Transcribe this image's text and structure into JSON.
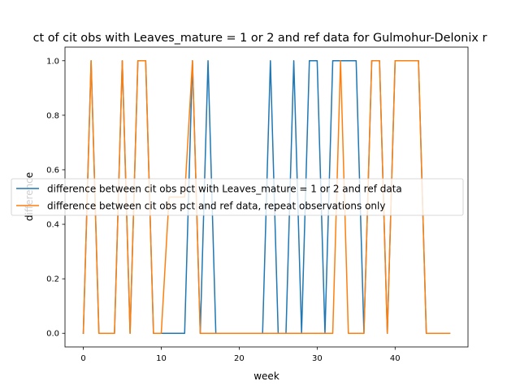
{
  "chart_data": {
    "type": "line",
    "title": "ct of cit obs with Leaves_mature = 1 or 2 and ref data for Gulmohur-Delonix r",
    "xlabel": "week",
    "ylabel": "difference",
    "xlim": [
      -2.35,
      49.35
    ],
    "ylim": [
      -0.05,
      1.05
    ],
    "xticks": [
      0,
      10,
      20,
      30,
      40
    ],
    "yticks": [
      0.0,
      0.2,
      0.4,
      0.6,
      0.8,
      1.0
    ],
    "xtick_labels": [
      "0",
      "10",
      "20",
      "30",
      "40"
    ],
    "ytick_labels": [
      "0.0",
      "0.2",
      "0.4",
      "0.6",
      "0.8",
      "1.0"
    ],
    "legend_position": "center-left",
    "grid": false,
    "x": [
      0,
      1,
      2,
      3,
      4,
      5,
      6,
      7,
      8,
      9,
      10,
      11,
      12,
      13,
      14,
      15,
      16,
      17,
      18,
      19,
      20,
      21,
      22,
      23,
      24,
      25,
      26,
      27,
      28,
      29,
      30,
      31,
      32,
      33,
      34,
      35,
      36,
      37,
      38,
      39,
      40,
      41,
      42,
      43,
      44,
      45,
      46,
      47
    ],
    "series": [
      {
        "name": "difference between cit obs pct with Leaves_mature = 1 or 2 and ref data",
        "color": "#1f77b4",
        "values": [
          0,
          1,
          0,
          0,
          0,
          1,
          0,
          1,
          1,
          0,
          0,
          0,
          0,
          0,
          1,
          0,
          1,
          0,
          0,
          0,
          0,
          0,
          0,
          0,
          1,
          0,
          0,
          1,
          0,
          1,
          1,
          0,
          1,
          1,
          1,
          1,
          0,
          1,
          1,
          0,
          1,
          1,
          1,
          1,
          0,
          0,
          0,
          0
        ]
      },
      {
        "name": "difference between cit obs pct and ref data, repeat observations only",
        "color": "#ff7f0e",
        "values": [
          0,
          1,
          0,
          0,
          0,
          1,
          0,
          1,
          1,
          0,
          0,
          0.5,
          0.5,
          0.5,
          1,
          0,
          0,
          0,
          0,
          0,
          0,
          0,
          0,
          0,
          0,
          0,
          0,
          0,
          0,
          0,
          0,
          0,
          0,
          1,
          0,
          0,
          0,
          1,
          1,
          0,
          1,
          1,
          1,
          1,
          0,
          0,
          0,
          0
        ]
      }
    ]
  }
}
